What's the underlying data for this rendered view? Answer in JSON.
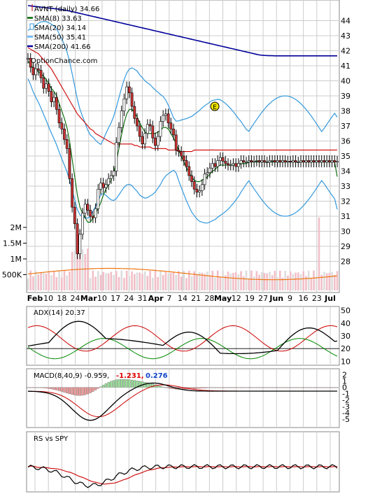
{
  "chart_data": {
    "type": "line",
    "ticker_line": "AVNT (daily) 34.66",
    "watermark": "OptionChance.com",
    "legend": [
      {
        "label": "AVNT (daily) 34.66",
        "color": "#cc0000",
        "icon": "candle-icon"
      },
      {
        "label": "SMA(8) 33.63",
        "color": "#006600",
        "icon": "line-icon"
      },
      {
        "label": "SMA(20) 34.14",
        "color": "#3399dd",
        "icon": "bollinger-icon"
      },
      {
        "label": "SMA(50) 35.41",
        "color": "#66bbff",
        "icon": "line-icon"
      },
      {
        "label": "SMA(200) 41.66",
        "color": "#000099",
        "icon": "line-icon"
      }
    ],
    "price_axis": {
      "ticks": [
        "28",
        "29",
        "30",
        "31",
        "32",
        "33",
        "34",
        "35",
        "36",
        "37",
        "38",
        "39",
        "40",
        "41",
        "42",
        "43",
        "44"
      ],
      "ylim": [
        27,
        45
      ]
    },
    "volume_axis": {
      "ticks": [
        "500K",
        "1M",
        "1.5M",
        "2M"
      ],
      "ylim": [
        0,
        2500000
      ]
    },
    "x_axis": {
      "labels": [
        "Feb",
        "10",
        "18",
        "24",
        "Mar",
        "10",
        "17",
        "24",
        "31",
        "Apr",
        "7",
        "14",
        "21",
        "28",
        "May",
        "12",
        "19",
        "27",
        "Jun",
        "9",
        "16",
        "23",
        "Jul"
      ],
      "bold": [
        "Feb",
        "Mar",
        "Apr",
        "May",
        "Jun",
        "Jul"
      ]
    },
    "price": {
      "x": [
        0,
        1,
        2,
        3,
        4,
        5,
        6,
        7,
        8,
        9,
        10,
        11,
        12,
        13,
        14,
        15,
        16,
        17,
        18,
        19,
        20,
        21,
        22,
        23,
        24,
        25,
        26,
        27,
        28,
        29,
        30,
        31,
        32,
        33,
        34,
        35,
        36,
        37,
        38,
        39,
        40,
        41,
        42,
        43,
        44,
        45,
        46,
        47,
        48,
        49,
        50,
        51,
        52,
        53,
        54,
        55,
        56,
        57,
        58,
        59,
        60,
        61,
        62,
        63,
        64,
        65,
        66,
        67,
        68,
        69,
        70,
        71,
        72,
        73,
        74,
        75,
        76,
        77,
        78,
        79,
        80,
        81,
        82,
        83,
        84,
        85,
        86,
        87,
        88,
        89,
        90,
        91,
        92,
        93,
        94,
        95,
        96,
        97,
        98,
        99,
        100,
        101,
        102,
        103,
        104,
        105,
        106,
        107,
        108,
        109,
        110,
        111,
        112,
        113,
        114,
        115,
        116,
        117,
        118,
        119
      ],
      "close": [
        41.5,
        40.9,
        40.4,
        40.8,
        40.7,
        40.2,
        39.5,
        39.8,
        39.3,
        38.6,
        38.9,
        38.1,
        37.2,
        36.8,
        36.1,
        35.5,
        33.5,
        31.6,
        30.5,
        28.5,
        29.8,
        31.2,
        31.8,
        31.4,
        31.0,
        30.9,
        31.5,
        32.8,
        33.2,
        32.9,
        33.1,
        33.5,
        33.7,
        34.0,
        35.9,
        36.9,
        38.0,
        38.8,
        39.6,
        39.2,
        38.3,
        37.5,
        37.0,
        36.3,
        35.8,
        36.5,
        37.1,
        37.0,
        36.2,
        35.7,
        36.3,
        37.3,
        37.7,
        37.8,
        37.2,
        36.8,
        36.4,
        35.4,
        35.3,
        35.0,
        34.7,
        34.3,
        33.7,
        33.3,
        32.8,
        32.6,
        32.7,
        33.1,
        33.8,
        33.9,
        34.2,
        34.5,
        34.3,
        34.7,
        34.9,
        34.66,
        34.5,
        34.4,
        34.4,
        34.5,
        34.3,
        34.5,
        34.7,
        34.6,
        34.6,
        34.7,
        34.6,
        34.66,
        34.7,
        34.6,
        34.7,
        34.6,
        34.6,
        34.7,
        34.7,
        34.6,
        34.7,
        34.6,
        34.7,
        34.6,
        34.66,
        34.6,
        34.7,
        34.6,
        34.6,
        34.7,
        34.6,
        34.7,
        34.6,
        34.7,
        34.6,
        34.7,
        34.6,
        34.7,
        34.6,
        34.7,
        34.6,
        34.7,
        34.6,
        34.66
      ],
      "sma8": [
        41.3,
        41.1,
        40.8,
        40.7,
        40.6,
        40.5,
        40.3,
        40.1,
        39.8,
        39.5,
        39.3,
        39.0,
        38.5,
        38.0,
        37.5,
        36.9,
        36.0,
        34.8,
        33.6,
        32.4,
        31.6,
        31.2,
        30.9,
        30.6,
        30.6,
        30.9,
        31.2,
        31.5,
        31.9,
        32.4,
        32.8,
        33.1,
        33.4,
        33.9,
        34.6,
        35.5,
        36.4,
        37.2,
        37.8,
        38.1,
        38.1,
        37.9,
        37.6,
        37.2,
        36.9,
        36.6,
        36.5,
        36.5,
        36.5,
        36.5,
        36.6,
        36.7,
        36.9,
        36.9,
        36.8,
        36.5,
        36.2,
        35.8,
        35.4,
        35.0,
        34.6,
        34.2,
        33.9,
        33.6,
        33.4,
        33.3,
        33.3,
        33.4,
        33.5,
        33.6,
        33.8,
        34.0,
        34.1,
        34.3,
        34.4,
        34.4,
        34.4,
        34.4,
        34.4,
        34.4,
        34.4,
        34.4,
        34.5,
        34.5,
        34.5,
        34.6,
        34.6,
        34.6,
        34.6,
        34.6,
        34.6,
        34.6,
        34.6,
        34.6,
        34.6,
        34.6,
        34.6,
        34.6,
        34.6,
        34.6,
        34.6,
        34.6,
        34.6,
        34.6,
        34.6,
        34.6,
        34.6,
        34.6,
        34.6,
        34.6,
        34.6,
        34.6,
        34.6,
        34.6,
        34.6,
        34.6,
        34.6,
        34.6,
        34.6,
        33.63
      ],
      "sma50": [
        42.2,
        42.1,
        42.0,
        41.9,
        41.8,
        41.6,
        41.4,
        41.2,
        41.0,
        40.8,
        40.5,
        40.2,
        39.9,
        39.6,
        39.3,
        39.0,
        38.7,
        38.4,
        38.1,
        37.8,
        37.6,
        37.4,
        37.2,
        37.0,
        36.8,
        36.7,
        36.5,
        36.4,
        36.3,
        36.2,
        36.1,
        36.0,
        35.9,
        35.8,
        35.8,
        35.8,
        35.8,
        35.8,
        35.8,
        35.8,
        35.8,
        35.7,
        35.7,
        35.6,
        35.6,
        35.6,
        35.6,
        35.6,
        35.5,
        35.5,
        35.5,
        35.5,
        35.5,
        35.5,
        35.4,
        35.4,
        35.4,
        35.4,
        35.3,
        35.3,
        35.3,
        35.3,
        35.3,
        35.3,
        35.4,
        35.4,
        35.4,
        35.4,
        35.4,
        35.4,
        35.4,
        35.41,
        35.4,
        35.4,
        35.4,
        35.4,
        35.4,
        35.4,
        35.4,
        35.4,
        35.4,
        35.4,
        35.4,
        35.4,
        35.4,
        35.4,
        35.4,
        35.4,
        35.4,
        35.4,
        35.4,
        35.4,
        35.4,
        35.4,
        35.4,
        35.4,
        35.4,
        35.4,
        35.4,
        35.4,
        35.4,
        35.4,
        35.4,
        35.4,
        35.4,
        35.4,
        35.4,
        35.4,
        35.4,
        35.4,
        35.4,
        35.4,
        35.4,
        35.4,
        35.4,
        35.4,
        35.4,
        35.4,
        35.4,
        35.41
      ],
      "sma200": [
        45.0,
        44.98,
        44.96,
        44.94,
        44.92,
        44.9,
        44.88,
        44.86,
        44.84,
        44.82,
        44.8,
        44.78,
        44.76,
        44.73,
        44.7,
        44.67,
        44.64,
        44.6,
        44.56,
        44.52,
        44.48,
        44.44,
        44.4,
        44.36,
        44.32,
        44.28,
        44.24,
        44.2,
        44.16,
        44.12,
        44.08,
        44.04,
        44.0,
        43.96,
        43.92,
        43.88,
        43.84,
        43.8,
        43.76,
        43.72,
        43.68,
        43.64,
        43.6,
        43.56,
        43.52,
        43.48,
        43.44,
        43.4,
        43.36,
        43.32,
        43.28,
        43.24,
        43.2,
        43.16,
        43.12,
        43.08,
        43.04,
        43.0,
        42.96,
        42.92,
        42.88,
        42.84,
        42.8,
        42.76,
        42.72,
        42.68,
        42.64,
        42.6,
        42.56,
        42.52,
        42.48,
        42.44,
        42.4,
        42.36,
        42.32,
        42.28,
        42.24,
        42.2,
        42.16,
        42.12,
        42.08,
        42.04,
        42.0,
        41.96,
        41.92,
        41.88,
        41.84,
        41.8,
        41.76,
        41.72,
        41.7,
        41.69,
        41.68,
        41.67,
        41.67,
        41.66,
        41.66,
        41.66,
        41.66,
        41.66,
        41.66,
        41.66,
        41.66,
        41.66,
        41.66,
        41.66,
        41.66,
        41.66,
        41.66,
        41.66,
        41.66,
        41.66,
        41.66,
        41.66,
        41.66,
        41.66,
        41.66,
        41.66,
        41.66,
        41.66
      ]
    },
    "adx_panel": {
      "label": "ADX(14) 20.37",
      "ticks": [
        "10",
        "20",
        "30",
        "40",
        "50"
      ],
      "ylim": [
        8,
        52
      ]
    },
    "macd_panel": {
      "label": "MACD(8,40,9) -0.959,",
      "value_red": "-1.231,",
      "value_blue": "0.276",
      "ticks": [
        "-5",
        "-4",
        "-3",
        "-2",
        "-1",
        "0",
        "1",
        "2"
      ],
      "ylim": [
        -6,
        2.6
      ]
    },
    "rs_panel": {
      "label": "RS vs SPY"
    }
  }
}
